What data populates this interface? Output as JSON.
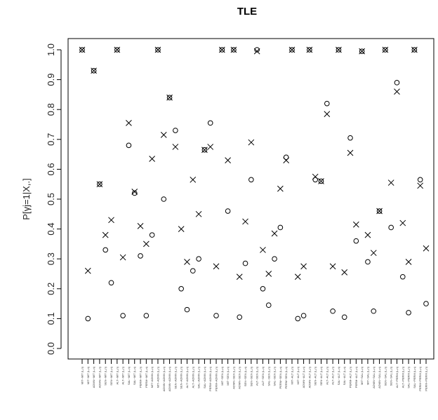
{
  "chart_data": {
    "type": "scatter",
    "title": "TLE",
    "ylabel": "P[γj=1|X,.]",
    "xlabel": "",
    "ylim": [
      0,
      1
    ],
    "yticks": [
      "0.0",
      "0.1",
      "0.2",
      "0.3",
      "0.4",
      "0.5",
      "0.6",
      "0.7",
      "0.8",
      "0.9",
      "1.0"
    ],
    "grid": false,
    "legend": "none",
    "n_categories": 60,
    "categories": [
      "MIT~MIT (L,n)",
      "MIT~MIT (L,n)",
      "ADMN~MIT (L,n)",
      "ADMN~MIT (L,n)",
      "SEN~MIT (L,n)",
      "SEN~MIT (L,n)",
      "ALT~MIT (L,n)",
      "ALT~MIT (L,n)",
      "SAL~MIT (L,n)",
      "SAL~MIT (L,n)",
      "PERM~MIT (L,n)",
      "PERM~MIT (L,n)",
      "MIT~ADMN (L,n)",
      "MIT~ADMN (L,n)",
      "ADMN~ADMN (L,n)",
      "ADMN~ADMN (L,n)",
      "SEN~ADMN (L,n)",
      "SEN~ADMN (L,n)",
      "ALT~ADMN (L,n)",
      "ALT~ADMN (L,n)",
      "SAL~ADMN (L,n)",
      "SAL~ADMN (L,n)",
      "PERM~ADMN (L,n)",
      "PERM~ADMN (L,n)",
      "MIT~SEN (L,n)",
      "MIT~SEN (L,n)",
      "ADMN~SEN (L,n)",
      "ADMN~SEN (L,n)",
      "SEN~SEN (L,n)",
      "SEN~SEN (L,n)",
      "ALT~SEN (L,n)",
      "ALT~SEN (L,n)",
      "SAL~SEN (L,n)",
      "SAL~SEN (L,n)",
      "PERM~SEN (L,n)",
      "PERM~SEN (L,n)",
      "MIT~ALT (L,n)",
      "MIT~ALT (L,n)",
      "ADMN~ALT (L,n)",
      "ADMN~ALT (L,n)",
      "SEN~ALT (L,n)",
      "SEN~ALT (L,n)",
      "ALT~ALT (L,n)",
      "ALT~ALT (L,n)",
      "SAL~ALT (L,n)",
      "SAL~ALT (L,n)",
      "PERM~ALT (L,n)",
      "PERM~ALT (L,n)",
      "MIT~SAL (L,n)",
      "MIT~SAL (L,n)",
      "ADMN~SAL (L,n)",
      "ADMN~SAL (L,n)",
      "SEN~SAL (L,n)",
      "SEN~SAL (L,n)",
      "ALT~PERM (L,n)",
      "ALT~PERM (L,n)",
      "SAL~PERM (L,n)",
      "SAL~PERM (L,n)",
      "PERM~PERM (L,n)",
      "PERM~PERM (L,n)"
    ],
    "series": [
      {
        "marker": "circle",
        "values": [
          1.0,
          0.1,
          0.93,
          0.55,
          0.33,
          0.22,
          1.0,
          0.11,
          0.68,
          0.52,
          0.31,
          0.11,
          0.38,
          1.0,
          0.5,
          0.84,
          0.73,
          0.2,
          0.13,
          0.26,
          0.3,
          0.665,
          0.755,
          0.11,
          1.0,
          0.46,
          1.0,
          0.105,
          0.285,
          0.565,
          1.0,
          0.2,
          0.145,
          0.3,
          0.405,
          0.64,
          1.0,
          0.1,
          0.11,
          1.0,
          0.565,
          0.56,
          0.82,
          0.125,
          1.0,
          0.105,
          0.705,
          0.36,
          0.995,
          0.29,
          0.125,
          0.46,
          1.0,
          0.405,
          0.89,
          0.24,
          0.12,
          1.0,
          0.565,
          0.15
        ]
      },
      {
        "marker": "x",
        "values": [
          1.0,
          0.26,
          0.93,
          0.55,
          0.38,
          0.43,
          1.0,
          0.305,
          0.755,
          0.525,
          0.41,
          0.35,
          0.635,
          1.0,
          0.715,
          0.84,
          0.675,
          0.4,
          0.29,
          0.565,
          0.45,
          0.665,
          0.675,
          0.275,
          1.0,
          0.63,
          1.0,
          0.24,
          0.425,
          0.69,
          0.995,
          0.33,
          0.25,
          0.385,
          0.535,
          0.63,
          1.0,
          0.24,
          0.275,
          1.0,
          0.575,
          0.56,
          0.785,
          0.275,
          1.0,
          0.255,
          0.655,
          0.415,
          0.995,
          0.38,
          0.32,
          0.46,
          1.0,
          0.555,
          0.86,
          0.42,
          0.29,
          1.0,
          0.545,
          0.335
        ]
      }
    ]
  }
}
